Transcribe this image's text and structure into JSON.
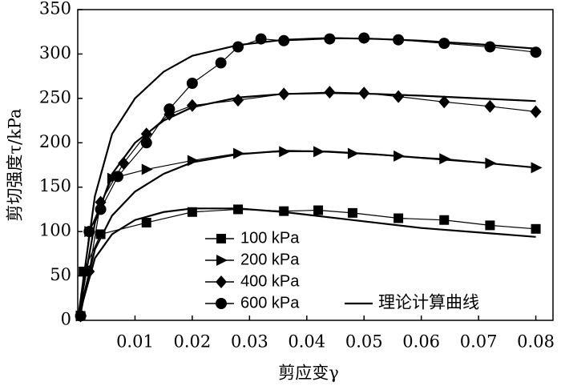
{
  "chart_data": {
    "type": "line",
    "xlabel": "剪应变γ",
    "ylabel": "剪切强度τ/kPa",
    "xlim": [
      0,
      0.083
    ],
    "ylim": [
      0,
      350
    ],
    "xticks": [
      0.01,
      0.02,
      0.03,
      0.04,
      0.05,
      0.06,
      0.07,
      0.08
    ],
    "yticks": [
      0,
      50,
      100,
      150,
      200,
      250,
      300,
      350
    ],
    "series": [
      {
        "name": "100 kPa",
        "color": "#000",
        "marker": "square",
        "x": [
          0.0005,
          0.001,
          0.004,
          0.012,
          0.02,
          0.028,
          0.036,
          0.042,
          0.048,
          0.056,
          0.064,
          0.072,
          0.08
        ],
        "values": [
          5,
          55,
          97,
          110,
          122,
          125,
          123,
          124,
          121,
          115,
          113,
          107,
          103
        ]
      },
      {
        "name": "200 kPa",
        "color": "#000",
        "marker": "triangle",
        "x": [
          0.0005,
          0.002,
          0.006,
          0.012,
          0.02,
          0.028,
          0.036,
          0.042,
          0.048,
          0.056,
          0.064,
          0.072,
          0.08
        ],
        "values": [
          5,
          100,
          160,
          170,
          180,
          188,
          190,
          190,
          188,
          185,
          182,
          177,
          172
        ]
      },
      {
        "name": "400 kPa",
        "color": "#000",
        "marker": "diamond",
        "x": [
          0.0005,
          0.002,
          0.004,
          0.008,
          0.012,
          0.016,
          0.02,
          0.028,
          0.036,
          0.044,
          0.05,
          0.056,
          0.064,
          0.072,
          0.08
        ],
        "values": [
          5,
          55,
          133,
          177,
          210,
          232,
          242,
          248,
          255,
          257,
          256,
          252,
          246,
          241,
          235
        ]
      },
      {
        "name": "600 kPa",
        "color": "#000",
        "marker": "circle",
        "x": [
          0.0005,
          0.002,
          0.004,
          0.007,
          0.012,
          0.016,
          0.02,
          0.025,
          0.028,
          0.032,
          0.036,
          0.044,
          0.05,
          0.056,
          0.064,
          0.072,
          0.08
        ],
        "values": [
          5,
          100,
          125,
          162,
          200,
          238,
          267,
          290,
          308,
          317,
          315,
          317,
          318,
          316,
          312,
          308,
          302
        ]
      }
    ],
    "theory": {
      "name": "理论计算曲线",
      "color": "#000",
      "curves": [
        {
          "x": [
            0,
            0.003,
            0.006,
            0.01,
            0.015,
            0.02,
            0.028,
            0.036,
            0.044,
            0.052,
            0.06,
            0.07,
            0.08
          ],
          "values": [
            0,
            70,
            97,
            113,
            122,
            126,
            126,
            122,
            116,
            110,
            104,
            99,
            94
          ]
        },
        {
          "x": [
            0,
            0.003,
            0.006,
            0.01,
            0.015,
            0.02,
            0.028,
            0.036,
            0.044,
            0.052,
            0.06,
            0.07,
            0.08
          ],
          "values": [
            0,
            80,
            118,
            145,
            165,
            178,
            187,
            191,
            190,
            187,
            183,
            178,
            172
          ]
        },
        {
          "x": [
            0,
            0.003,
            0.006,
            0.01,
            0.015,
            0.02,
            0.028,
            0.036,
            0.044,
            0.052,
            0.06,
            0.07,
            0.08
          ],
          "values": [
            0,
            110,
            165,
            200,
            225,
            240,
            251,
            255,
            256,
            255,
            253,
            250,
            247
          ]
        },
        {
          "x": [
            0,
            0.003,
            0.006,
            0.01,
            0.015,
            0.02,
            0.028,
            0.036,
            0.044,
            0.052,
            0.06,
            0.07,
            0.08
          ],
          "values": [
            0,
            140,
            210,
            250,
            280,
            298,
            310,
            316,
            318,
            317,
            315,
            311,
            306
          ]
        }
      ]
    }
  }
}
